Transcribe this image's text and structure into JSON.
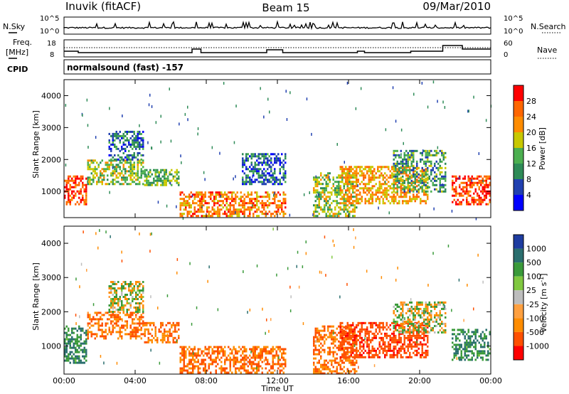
{
  "header": {
    "station": "Inuvik (fitACF)",
    "beam": "Beam 15",
    "date": "09/Mar/2010"
  },
  "noise_panel": {
    "left_label": "N.Sky",
    "right_label": "N.Search",
    "left_ticks": [
      "10^5",
      "10^0"
    ],
    "right_ticks": [
      "10^5",
      "10^0"
    ]
  },
  "freq_panel": {
    "left_label_1": "Freq.",
    "left_label_2": "[MHz]",
    "right_label": "Nave",
    "left_ticks": [
      "18",
      "8"
    ],
    "right_ticks": [
      "60",
      "0"
    ],
    "cpid_label": "CPID",
    "program": "normalsound (fast) -157"
  },
  "x_axis": {
    "label": "Time UT",
    "ticks": [
      "00:00",
      "04:00",
      "08:00",
      "12:00",
      "16:00",
      "20:00",
      "00:00"
    ]
  },
  "colors": {
    "power": [
      "#0000ff",
      "#2040b0",
      "#2e8b57",
      "#4caf50",
      "#c8c800",
      "#ff8c00",
      "#ff6600",
      "#ff0000"
    ],
    "velocity": [
      "#1e3ca0",
      "#2a6e6e",
      "#3a9a3a",
      "#80c840",
      "#bdbdbd",
      "#ffa040",
      "#ff8c00",
      "#ff5000",
      "#ff0000"
    ]
  },
  "chart_data": [
    {
      "type": "heatmap",
      "panel": "power",
      "title": "",
      "xlabel": "Time UT",
      "ylabel": "Slant Range [km]",
      "xlim": [
        0,
        24
      ],
      "ylim": [
        180,
        4500
      ],
      "yticks": [
        "1000",
        "2000",
        "3000",
        "4000"
      ],
      "colorbar": {
        "label": "Power [dB]",
        "range": [
          0,
          32
        ],
        "ticks": [
          "4",
          "8",
          "12",
          "16",
          "20",
          "24",
          "28"
        ]
      },
      "regions": [
        {
          "t": [
            0.0,
            1.3
          ],
          "r": [
            600,
            1500
          ],
          "value": 28
        },
        {
          "t": [
            1.3,
            4.5
          ],
          "r": [
            1200,
            2000
          ],
          "value": 16
        },
        {
          "t": [
            2.5,
            4.5
          ],
          "r": [
            2000,
            2900
          ],
          "value": 8
        },
        {
          "t": [
            4.5,
            6.5
          ],
          "r": [
            1200,
            1700
          ],
          "value": 14
        },
        {
          "t": [
            6.5,
            12.5
          ],
          "r": [
            200,
            1000
          ],
          "value": 24
        },
        {
          "t": [
            10.0,
            12.5
          ],
          "r": [
            1200,
            2200
          ],
          "value": 8
        },
        {
          "t": [
            14.0,
            16.5
          ],
          "r": [
            200,
            1600
          ],
          "value": 16
        },
        {
          "t": [
            15.5,
            20.5
          ],
          "r": [
            600,
            1800
          ],
          "value": 22
        },
        {
          "t": [
            18.5,
            21.5
          ],
          "r": [
            1000,
            2300
          ],
          "value": 12
        },
        {
          "t": [
            21.8,
            24.0
          ],
          "r": [
            600,
            1500
          ],
          "value": 28
        }
      ]
    },
    {
      "type": "heatmap",
      "panel": "velocity",
      "title": "",
      "xlabel": "Time UT",
      "ylabel": "Slant Range [km]",
      "xlim": [
        0,
        24
      ],
      "ylim": [
        180,
        4500
      ],
      "yticks": [
        "1000",
        "2000",
        "3000",
        "4000"
      ],
      "colorbar": {
        "label": "Velocity [m s^-1]",
        "ticks": [
          "1000",
          "500",
          "100",
          "25",
          "-25",
          "-100",
          "-500",
          "-1000"
        ]
      },
      "regions": [
        {
          "t": [
            0.0,
            1.3
          ],
          "r": [
            500,
            1600
          ],
          "value": 300
        },
        {
          "t": [
            1.3,
            4.5
          ],
          "r": [
            1200,
            2000
          ],
          "value": -300
        },
        {
          "t": [
            2.5,
            4.5
          ],
          "r": [
            2000,
            2900
          ],
          "value": 0
        },
        {
          "t": [
            4.5,
            6.5
          ],
          "r": [
            1100,
            1700
          ],
          "value": -300
        },
        {
          "t": [
            6.5,
            12.5
          ],
          "r": [
            200,
            1000
          ],
          "value": -300
        },
        {
          "t": [
            14.0,
            16.5
          ],
          "r": [
            200,
            1600
          ],
          "value": -300
        },
        {
          "t": [
            15.5,
            20.5
          ],
          "r": [
            700,
            1700
          ],
          "value": -600
        },
        {
          "t": [
            18.5,
            21.5
          ],
          "r": [
            1400,
            2300
          ],
          "value": 0
        },
        {
          "t": [
            21.8,
            24.0
          ],
          "r": [
            600,
            1500
          ],
          "value": 300
        }
      ]
    }
  ]
}
